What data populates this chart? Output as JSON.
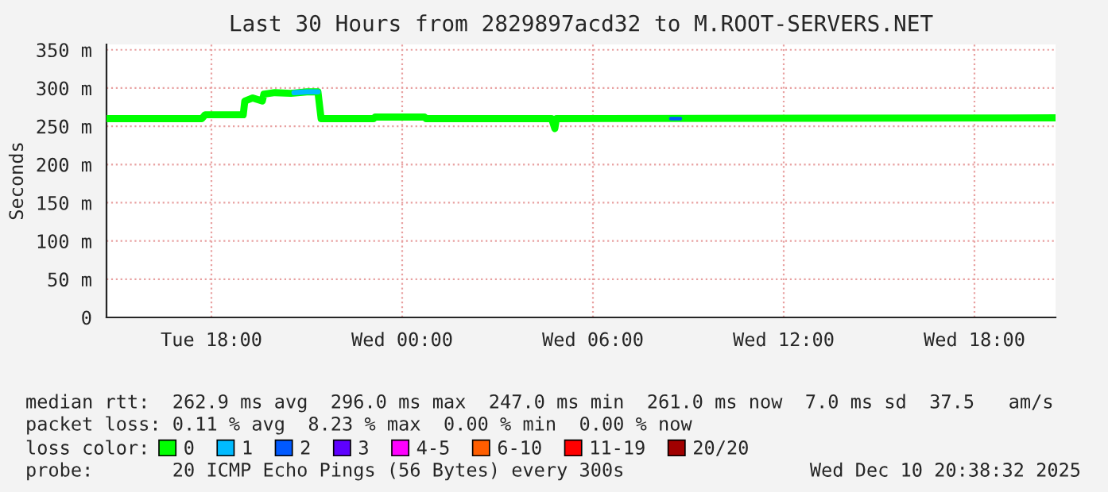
{
  "chart_data": {
    "type": "line",
    "title": "Last 30 Hours from 2829897acd32 to M.ROOT-SERVERS.NET",
    "ylabel": "Seconds",
    "xlim": [
      "2025-12-09T14:42",
      "2025-12-10T20:33"
    ],
    "xticks": [
      {
        "value": "2025-12-09T18:00",
        "label": "Tue 18:00"
      },
      {
        "value": "2025-12-10T00:00",
        "label": "Wed 00:00"
      },
      {
        "value": "2025-12-10T06:00",
        "label": "Wed 06:00"
      },
      {
        "value": "2025-12-10T12:00",
        "label": "Wed 12:00"
      },
      {
        "value": "2025-12-10T18:00",
        "label": "Wed 18:00"
      }
    ],
    "ylim": [
      0,
      357
    ],
    "yticks": [
      0,
      {
        "value": 50,
        "label": "50 m"
      },
      {
        "value": 100,
        "label": "100 m"
      },
      {
        "value": 150,
        "label": "150 m"
      },
      {
        "value": 200,
        "label": "200 m"
      },
      {
        "value": 250,
        "label": "250 m"
      },
      {
        "value": 300,
        "label": "300 m"
      },
      {
        "value": 350,
        "label": "350 m"
      }
    ],
    "grid": true,
    "legend": "bottom",
    "legend_title": "loss color:",
    "series": [
      {
        "name": "0",
        "color": "#00ff00",
        "x": [
          "2025-12-09T14:42",
          "2025-12-09T17:42",
          "2025-12-09T17:48",
          "2025-12-09T19:00",
          "2025-12-09T19:03",
          "2025-12-09T19:18",
          "2025-12-09T19:36",
          "2025-12-09T19:39",
          "2025-12-09T20:00",
          "2025-12-09T20:30",
          "2025-12-09T21:00",
          "2025-12-09T21:21",
          "2025-12-09T21:27",
          "2025-12-09T23:06",
          "2025-12-09T23:09",
          "2025-12-10T00:42",
          "2025-12-10T00:45",
          "2025-12-10T04:42",
          "2025-12-10T04:48",
          "2025-12-10T04:51",
          "2025-12-10T20:33"
        ],
        "values": [
          260,
          260,
          265,
          265,
          283,
          287,
          283,
          292,
          294,
          293,
          295,
          295,
          260,
          260,
          262,
          262,
          260,
          260,
          247,
          260,
          261
        ]
      },
      {
        "name": "1",
        "color": "#00bbff",
        "x": [
          "2025-12-09T20:36",
          "2025-12-09T21:00",
          "2025-12-09T21:21"
        ],
        "values": [
          294,
          295,
          295
        ]
      },
      {
        "name": "2",
        "color": "#0059ff",
        "x": [
          "2025-12-10T08:27",
          "2025-12-10T08:45"
        ],
        "values": [
          260,
          260
        ]
      },
      {
        "name": "3",
        "color": "#5e00ff"
      },
      {
        "name": "4-5",
        "color": "#ff00ff"
      },
      {
        "name": "6-10",
        "color": "#ff5e00"
      },
      {
        "name": "11-19",
        "color": "#ff0000"
      },
      {
        "name": "20/20",
        "color": "#a10000"
      }
    ],
    "annotations": [
      "median rtt:  262.9 ms avg  296.0 ms max  247.0 ms min  261.0 ms now  7.0 ms sd  37.5   am/s",
      "packet loss: 0.11 % avg  8.23 % max  0.00 % min  0.00 % now",
      "probe:       20 ICMP Echo Pings (56 Bytes) every 300s",
      "Wed Dec 10 20:38:32 2025"
    ]
  }
}
